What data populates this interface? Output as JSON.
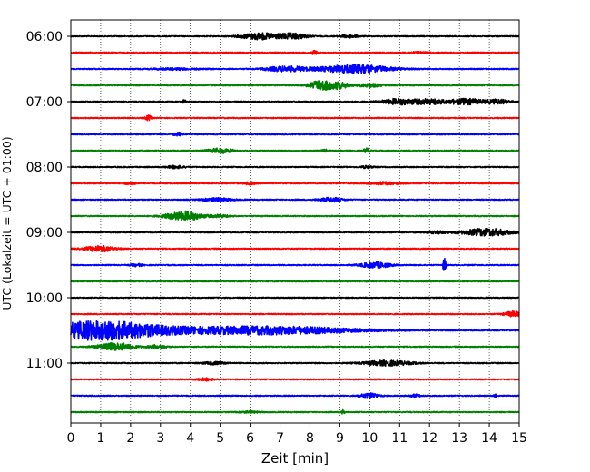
{
  "chart_data": {
    "type": "line",
    "title": "",
    "xlabel": "Zeit  [min]",
    "ylabel": "UTC (Lokalzeit = UTC + 01:00)",
    "xlim": [
      0,
      15
    ],
    "x_ticks": [
      "0",
      "1",
      "2",
      "3",
      "4",
      "5",
      "6",
      "7",
      "8",
      "9",
      "10",
      "11",
      "12",
      "13",
      "14",
      "15"
    ],
    "y_ticks": [
      "06:00",
      "07:00",
      "08:00",
      "09:00",
      "10:00",
      "11:00"
    ],
    "grid": "vertical dotted",
    "legend": "none",
    "trace_colors": [
      "#000000",
      "#ff0000",
      "#0000ff",
      "#008000"
    ],
    "series": [
      {
        "start": "06:00",
        "color": "#000000",
        "events": [
          [
            6.3,
            0.8,
            0.6
          ],
          [
            7.4,
            0.7,
            0.5
          ],
          [
            9.3,
            0.35,
            0.3
          ]
        ]
      },
      {
        "start": "06:15",
        "color": "#ff0000",
        "events": [
          [
            8.15,
            0.5,
            0.1
          ],
          [
            11.6,
            0.15,
            0.4
          ]
        ]
      },
      {
        "start": "06:30",
        "color": "#0000ff",
        "events": [
          [
            7.2,
            0.6,
            0.7
          ],
          [
            9.5,
            1.0,
            1.2
          ],
          [
            3.5,
            0.2,
            0.8
          ]
        ]
      },
      {
        "start": "06:45",
        "color": "#008000",
        "events": [
          [
            8.4,
            1.2,
            0.4
          ],
          [
            9.0,
            0.7,
            0.3
          ],
          [
            10.0,
            0.4,
            0.4
          ]
        ]
      },
      {
        "start": "07:00",
        "color": "#000000",
        "events": [
          [
            3.8,
            0.5,
            0.05
          ],
          [
            11.0,
            0.7,
            0.6
          ],
          [
            12.0,
            0.6,
            0.5
          ],
          [
            13.2,
            0.7,
            0.6
          ],
          [
            14.3,
            0.5,
            0.4
          ]
        ]
      },
      {
        "start": "07:15",
        "color": "#ff0000",
        "events": [
          [
            2.6,
            0.6,
            0.1
          ]
        ]
      },
      {
        "start": "07:30",
        "color": "#0000ff",
        "events": [
          [
            3.6,
            0.4,
            0.15
          ]
        ]
      },
      {
        "start": "07:45",
        "color": "#008000",
        "events": [
          [
            5.0,
            0.6,
            0.4
          ],
          [
            9.9,
            0.6,
            0.1
          ],
          [
            8.5,
            0.3,
            0.1
          ]
        ]
      },
      {
        "start": "08:00",
        "color": "#000000",
        "events": [
          [
            3.5,
            0.3,
            0.3
          ],
          [
            9.9,
            0.3,
            0.2
          ]
        ]
      },
      {
        "start": "08:15",
        "color": "#ff0000",
        "events": [
          [
            2.0,
            0.3,
            0.2
          ],
          [
            6.0,
            0.3,
            0.2
          ],
          [
            10.5,
            0.3,
            0.5
          ]
        ]
      },
      {
        "start": "08:30",
        "color": "#0000ff",
        "events": [
          [
            4.9,
            0.4,
            0.5
          ],
          [
            8.7,
            0.5,
            0.4
          ]
        ]
      },
      {
        "start": "08:45",
        "color": "#008000",
        "events": [
          [
            3.8,
            1.1,
            0.6
          ],
          [
            5.0,
            0.3,
            0.3
          ]
        ]
      },
      {
        "start": "09:00",
        "color": "#000000",
        "events": [
          [
            13.9,
            0.9,
            0.8
          ],
          [
            12.2,
            0.3,
            0.4
          ]
        ]
      },
      {
        "start": "09:15",
        "color": "#ff0000",
        "events": [
          [
            1.0,
            0.7,
            0.5
          ]
        ]
      },
      {
        "start": "09:30",
        "color": "#0000ff",
        "events": [
          [
            2.2,
            0.3,
            0.2
          ],
          [
            10.2,
            0.7,
            0.5
          ],
          [
            12.5,
            1.6,
            0.06
          ]
        ]
      },
      {
        "start": "09:45",
        "color": "#008000",
        "events": []
      },
      {
        "start": "10:00",
        "color": "#000000",
        "events": []
      },
      {
        "start": "10:15",
        "color": "#ff0000",
        "events": [
          [
            14.8,
            0.6,
            0.3
          ]
        ]
      },
      {
        "start": "10:30",
        "color": "#0000ff",
        "events": [
          [
            0.6,
            2.0,
            1.5
          ],
          [
            2.2,
            0.9,
            1.5
          ],
          [
            4.8,
            0.6,
            2.5
          ],
          [
            7.4,
            0.7,
            2.5
          ]
        ]
      },
      {
        "start": "10:45",
        "color": "#008000",
        "events": [
          [
            1.5,
            0.9,
            0.6
          ],
          [
            2.9,
            0.4,
            0.3
          ]
        ]
      },
      {
        "start": "11:00",
        "color": "#000000",
        "events": [
          [
            10.6,
            0.6,
            0.8
          ],
          [
            4.8,
            0.3,
            0.4
          ]
        ]
      },
      {
        "start": "11:15",
        "color": "#ff0000",
        "events": [
          [
            4.5,
            0.3,
            0.3
          ]
        ]
      },
      {
        "start": "11:30",
        "color": "#0000ff",
        "events": [
          [
            10.0,
            0.7,
            0.3
          ],
          [
            11.5,
            0.3,
            0.2
          ],
          [
            14.2,
            0.5,
            0.05
          ]
        ]
      },
      {
        "start": "11:45",
        "color": "#008000",
        "events": [
          [
            6.0,
            0.2,
            0.3
          ],
          [
            9.1,
            1.0,
            0.05
          ]
        ]
      }
    ]
  }
}
